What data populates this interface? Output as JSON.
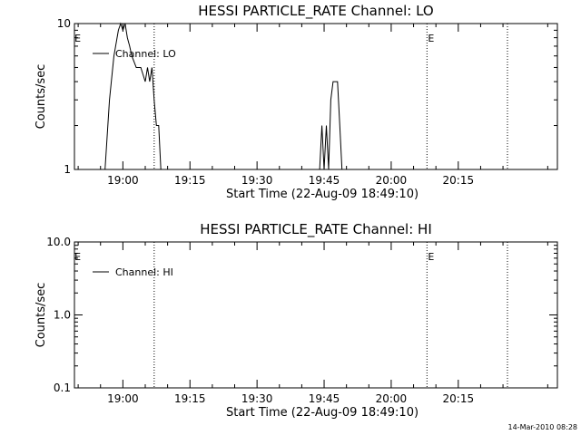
{
  "footer_timestamp": "14-Mar-2010 08:28",
  "chart_data": [
    {
      "type": "line",
      "title": "HESSI PARTICLE_RATE Channel: LO",
      "xlabel": "Start Time (22-Aug-09 18:49:10)",
      "ylabel": "Counts/sec",
      "yscale": "log",
      "ylim": [
        1,
        10
      ],
      "ytick_labels": [
        "1",
        "10"
      ],
      "xlim_minutes_after_start": [
        0,
        108
      ],
      "xtick_labels": [
        "19:00",
        "19:15",
        "19:30",
        "19:45",
        "20:00",
        "20:15"
      ],
      "legend": {
        "label": "Channel: LO",
        "placement": "top-left"
      },
      "markers": [
        {
          "label": "E",
          "time": "18:49"
        },
        {
          "label": "",
          "time": "19:07"
        },
        {
          "label": "E",
          "time": "20:08"
        },
        {
          "label": "",
          "time": "20:26"
        }
      ],
      "series": [
        {
          "name": "Channel: LO",
          "points": [
            [
              "18:56",
              1
            ],
            [
              "18:57",
              3
            ],
            [
              "18:58",
              6
            ],
            [
              "18:59",
              9
            ],
            [
              "18:59.5",
              10
            ],
            [
              "19:00",
              9
            ],
            [
              "19:00.5",
              10
            ],
            [
              "19:01",
              8
            ],
            [
              "19:01.5",
              7
            ],
            [
              "19:02",
              6
            ],
            [
              "19:03",
              5
            ],
            [
              "19:04",
              5
            ],
            [
              "19:05",
              4
            ],
            [
              "19:05.5",
              5
            ],
            [
              "19:06",
              4
            ],
            [
              "19:06.5",
              5
            ],
            [
              "19:07",
              3
            ],
            [
              "19:07.5",
              2
            ],
            [
              "19:08",
              2
            ],
            [
              "19:08.5",
              1
            ],
            [
              "19:44",
              1
            ],
            [
              "19:44.5",
              2
            ],
            [
              "19:45",
              1
            ],
            [
              "19:45.5",
              2
            ],
            [
              "19:46",
              1
            ],
            [
              "19:46.5",
              3
            ],
            [
              "19:47",
              4
            ],
            [
              "19:48",
              4
            ],
            [
              "19:48.5",
              2
            ],
            [
              "19:49",
              1
            ]
          ]
        }
      ]
    },
    {
      "type": "line",
      "title": "HESSI PARTICLE_RATE Channel: HI",
      "xlabel": "Start Time (22-Aug-09 18:49:10)",
      "ylabel": "Counts/sec",
      "yscale": "log",
      "ylim": [
        0.1,
        10
      ],
      "ytick_labels": [
        "0.1",
        "1.0",
        "10.0"
      ],
      "xlim_minutes_after_start": [
        0,
        108
      ],
      "xtick_labels": [
        "19:00",
        "19:15",
        "19:30",
        "19:45",
        "20:00",
        "20:15"
      ],
      "legend": {
        "label": "Channel: HI",
        "placement": "top-left"
      },
      "markers": [
        {
          "label": "E",
          "time": "18:49"
        },
        {
          "label": "",
          "time": "19:07"
        },
        {
          "label": "E",
          "time": "20:08"
        },
        {
          "label": "",
          "time": "20:26"
        }
      ],
      "series": [
        {
          "name": "Channel: HI",
          "points": []
        }
      ]
    }
  ]
}
